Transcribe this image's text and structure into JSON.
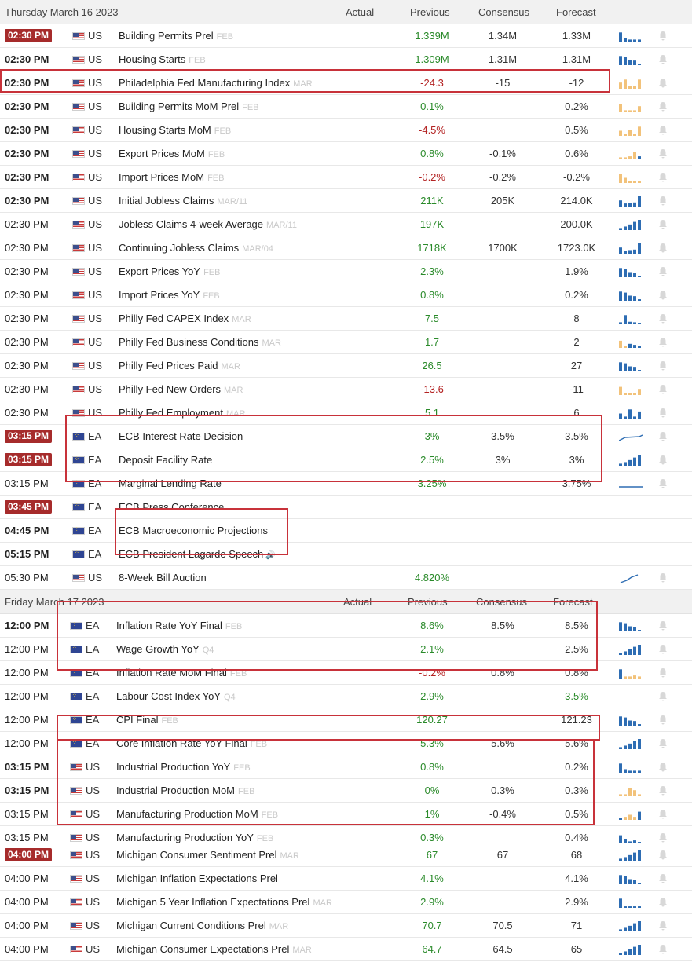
{
  "sections": [
    {
      "date": "Thursday March 16 2023",
      "columns": {
        "actual": "Actual",
        "previous": "Previous",
        "consensus": "Consensus",
        "forecast": "Forecast"
      },
      "rows": [
        {
          "time": "02:30 PM",
          "style": "badge",
          "country": "US",
          "event": "Building Permits Prel",
          "period": "FEB",
          "previous": "1.339M",
          "prev_color": "green",
          "consensus": "1.34M",
          "forecast": "1.33M",
          "spark": "bars-blue-1"
        },
        {
          "time": "02:30 PM",
          "style": "bold",
          "country": "US",
          "event": "Housing Starts",
          "period": "FEB",
          "previous": "1.309M",
          "prev_color": "green",
          "consensus": "1.31M",
          "forecast": "1.31M",
          "spark": "bars-blue-2"
        },
        {
          "time": "02:30 PM",
          "style": "bold",
          "country": "US",
          "event": "Philadelphia Fed Manufacturing Index",
          "period": "MAR",
          "previous": "-24.3",
          "prev_color": "red",
          "consensus": "-15",
          "forecast": "-12",
          "spark": "bars-yellow-1"
        },
        {
          "time": "02:30 PM",
          "style": "bold",
          "country": "US",
          "event": "Building Permits MoM Prel",
          "period": "FEB",
          "previous": "0.1%",
          "prev_color": "green",
          "consensus": "",
          "forecast": "0.2%",
          "spark": "bars-yellow-2"
        },
        {
          "time": "02:30 PM",
          "style": "bold",
          "country": "US",
          "event": "Housing Starts MoM",
          "period": "FEB",
          "previous": "-4.5%",
          "prev_color": "red",
          "consensus": "",
          "forecast": "0.5%",
          "spark": "bars-yellow-3"
        },
        {
          "time": "02:30 PM",
          "style": "bold",
          "country": "US",
          "event": "Export Prices MoM",
          "period": "FEB",
          "previous": "0.8%",
          "prev_color": "green",
          "consensus": "-0.1%",
          "forecast": "0.6%",
          "spark": "bars-yellow-4"
        },
        {
          "time": "02:30 PM",
          "style": "bold",
          "country": "US",
          "event": "Import Prices MoM",
          "period": "FEB",
          "previous": "-0.2%",
          "prev_color": "red",
          "consensus": "-0.2%",
          "forecast": "-0.2%",
          "spark": "bars-yellow-5"
        },
        {
          "time": "02:30 PM",
          "style": "bold",
          "country": "US",
          "event": "Initial Jobless Claims",
          "period": "MAR/11",
          "previous": "211K",
          "prev_color": "green",
          "consensus": "205K",
          "forecast": "214.0K",
          "spark": "bars-blue-3"
        },
        {
          "time": "02:30 PM",
          "style": "normal",
          "country": "US",
          "event": "Jobless Claims 4-week Average",
          "period": "MAR/11",
          "previous": "197K",
          "prev_color": "green",
          "consensus": "",
          "forecast": "200.0K",
          "spark": "bars-blue-4"
        },
        {
          "time": "02:30 PM",
          "style": "normal",
          "country": "US",
          "event": "Continuing Jobless Claims",
          "period": "MAR/04",
          "previous": "1718K",
          "prev_color": "green",
          "consensus": "1700K",
          "forecast": "1723.0K",
          "spark": "bars-blue-3"
        },
        {
          "time": "02:30 PM",
          "style": "normal",
          "country": "US",
          "event": "Export Prices YoY",
          "period": "FEB",
          "previous": "2.3%",
          "prev_color": "green",
          "consensus": "",
          "forecast": "1.9%",
          "spark": "bars-blue-2"
        },
        {
          "time": "02:30 PM",
          "style": "normal",
          "country": "US",
          "event": "Import Prices YoY",
          "period": "FEB",
          "previous": "0.8%",
          "prev_color": "green",
          "consensus": "",
          "forecast": "0.2%",
          "spark": "bars-blue-2"
        },
        {
          "time": "02:30 PM",
          "style": "normal",
          "country": "US",
          "event": "Philly Fed CAPEX Index",
          "period": "MAR",
          "previous": "7.5",
          "prev_color": "green",
          "consensus": "",
          "forecast": "8",
          "spark": "bars-blue-5"
        },
        {
          "time": "02:30 PM",
          "style": "normal",
          "country": "US",
          "event": "Philly Fed Business Conditions",
          "period": "MAR",
          "previous": "1.7",
          "prev_color": "green",
          "consensus": "",
          "forecast": "2",
          "spark": "bars-mixed-1"
        },
        {
          "time": "02:30 PM",
          "style": "normal",
          "country": "US",
          "event": "Philly Fed Prices Paid",
          "period": "MAR",
          "previous": "26.5",
          "prev_color": "green",
          "consensus": "",
          "forecast": "27",
          "spark": "bars-blue-2"
        },
        {
          "time": "02:30 PM",
          "style": "normal",
          "country": "US",
          "event": "Philly Fed New Orders",
          "period": "MAR",
          "previous": "-13.6",
          "prev_color": "red",
          "consensus": "",
          "forecast": "-11",
          "spark": "bars-yellow-2"
        },
        {
          "time": "02:30 PM",
          "style": "normal",
          "country": "US",
          "event": "Philly Fed Employment",
          "period": "MAR",
          "previous": "5.1",
          "prev_color": "green",
          "consensus": "",
          "forecast": "6",
          "spark": "bars-blue-6"
        },
        {
          "time": "03:15 PM",
          "style": "badge",
          "country": "EA",
          "event": "ECB Interest Rate Decision",
          "period": "",
          "previous": "3%",
          "prev_color": "green",
          "consensus": "3.5%",
          "forecast": "3.5%",
          "spark": "line-step"
        },
        {
          "time": "03:15 PM",
          "style": "badge",
          "country": "EA",
          "event": "Deposit Facility Rate",
          "period": "",
          "previous": "2.5%",
          "prev_color": "green",
          "consensus": "3%",
          "forecast": "3%",
          "spark": "bars-blue-4"
        },
        {
          "time": "03:15 PM",
          "style": "normal",
          "country": "EA",
          "event": "Marginal Lending Rate",
          "period": "",
          "previous": "3.25%",
          "prev_color": "green",
          "consensus": "",
          "forecast": "3.75%",
          "spark": "line-flat"
        },
        {
          "time": "03:45 PM",
          "style": "badge",
          "country": "EA",
          "event": "ECB Press Conference",
          "period": "",
          "previous": "",
          "prev_color": "green",
          "consensus": "",
          "forecast": "",
          "spark": "none",
          "nobell": true
        },
        {
          "time": "04:45 PM",
          "style": "bold",
          "country": "EA",
          "event": "ECB Macroeconomic Projections",
          "period": "",
          "previous": "",
          "prev_color": "green",
          "consensus": "",
          "forecast": "",
          "spark": "none",
          "nobell": true
        },
        {
          "time": "05:15 PM",
          "style": "bold",
          "country": "EA",
          "event": "ECB President Lagarde Speech",
          "period": "",
          "speaker": true,
          "previous": "",
          "prev_color": "green",
          "consensus": "",
          "forecast": "",
          "spark": "none",
          "nobell": true
        },
        {
          "time": "05:30 PM",
          "style": "normal",
          "country": "US",
          "event": "8-Week Bill Auction",
          "period": "",
          "previous": "4.820%",
          "prev_color": "green",
          "consensus": "",
          "forecast": "",
          "spark": "line-rise"
        }
      ]
    },
    {
      "date": "Friday March 17 2023",
      "columns": {
        "actual": "Actual",
        "previous": "Previous",
        "consensus": "Consensus",
        "forecast": "Forecast"
      },
      "rows": [
        {
          "time": "12:00 PM",
          "style": "bold",
          "country": "EA",
          "event": "Inflation Rate YoY Final",
          "period": "FEB",
          "previous": "8.6%",
          "prev_color": "green",
          "consensus": "8.5%",
          "forecast": "8.5%",
          "spark": "bars-blue-2"
        },
        {
          "time": "12:00 PM",
          "style": "normal",
          "country": "EA",
          "event": "Wage Growth YoY",
          "period": "Q4",
          "previous": "2.1%",
          "prev_color": "green",
          "consensus": "",
          "forecast": "2.5%",
          "spark": "bars-blue-4"
        },
        {
          "time": "12:00 PM",
          "style": "normal",
          "country": "EA",
          "event": "Inflation Rate MoM Final",
          "period": "FEB",
          "previous": "-0.2%",
          "prev_color": "red",
          "consensus": "0.8%",
          "forecast": "0.8%",
          "spark": "bars-mixed-2"
        },
        {
          "time": "12:00 PM",
          "style": "normal",
          "country": "EA",
          "event": "Labour Cost Index YoY",
          "period": "Q4",
          "previous": "2.9%",
          "prev_color": "green",
          "consensus": "",
          "forecast": "3.5%",
          "fore_color": "green",
          "spark": "none"
        },
        {
          "time": "12:00 PM",
          "style": "normal",
          "country": "EA",
          "event": "CPI Final",
          "period": "FEB",
          "previous": "120.27",
          "prev_color": "green",
          "consensus": "",
          "forecast": "121.23",
          "spark": "bars-blue-2"
        },
        {
          "time": "12:00 PM",
          "style": "normal",
          "country": "EA",
          "event": "Core Inflation Rate YoY Final",
          "period": "FEB",
          "previous": "5.3%",
          "prev_color": "green",
          "consensus": "5.6%",
          "forecast": "5.6%",
          "spark": "bars-blue-4"
        },
        {
          "time": "03:15 PM",
          "style": "bold",
          "country": "US",
          "event": "Industrial Production YoY",
          "period": "FEB",
          "previous": "0.8%",
          "prev_color": "green",
          "consensus": "",
          "forecast": "0.2%",
          "spark": "bars-blue-1"
        },
        {
          "time": "03:15 PM",
          "style": "bold",
          "country": "US",
          "event": "Industrial Production MoM",
          "period": "FEB",
          "previous": "0%",
          "prev_color": "green",
          "consensus": "0.3%",
          "forecast": "0.3%",
          "spark": "bars-yellow-6"
        },
        {
          "time": "03:15 PM",
          "style": "normal",
          "country": "US",
          "event": "Manufacturing Production MoM",
          "period": "FEB",
          "previous": "1%",
          "prev_color": "green",
          "consensus": "-0.4%",
          "forecast": "0.5%",
          "spark": "bars-mixed-3"
        },
        {
          "time": "03:15 PM",
          "style": "normal",
          "country": "US",
          "event": "Manufacturing Production YoY",
          "period": "FEB",
          "previous": "0.3%",
          "prev_color": "green",
          "consensus": "",
          "forecast": "0.4%",
          "spark": "bars-blue-7"
        },
        {
          "time": "04:00 PM",
          "style": "badge",
          "country": "US",
          "event": "Michigan Consumer Sentiment Prel",
          "period": "MAR",
          "previous": "67",
          "prev_color": "green",
          "consensus": "67",
          "forecast": "68",
          "spark": "bars-blue-4"
        },
        {
          "time": "04:00 PM",
          "style": "normal",
          "country": "US",
          "event": "Michigan Inflation Expectations Prel",
          "period": "",
          "previous": "4.1%",
          "prev_color": "green",
          "consensus": "",
          "forecast": "4.1%",
          "spark": "bars-blue-2"
        },
        {
          "time": "04:00 PM",
          "style": "normal",
          "country": "US",
          "event": "Michigan 5 Year Inflation Expectations Prel",
          "period": "MAR",
          "previous": "2.9%",
          "prev_color": "green",
          "consensus": "",
          "forecast": "2.9%",
          "spark": "bars-blue-8"
        },
        {
          "time": "04:00 PM",
          "style": "normal",
          "country": "US",
          "event": "Michigan Current Conditions Prel",
          "period": "MAR",
          "previous": "70.7",
          "prev_color": "green",
          "consensus": "70.5",
          "forecast": "71",
          "spark": "bars-blue-4"
        },
        {
          "time": "04:00 PM",
          "style": "normal",
          "country": "US",
          "event": "Michigan Consumer Expectations Prel",
          "period": "MAR",
          "previous": "64.7",
          "prev_color": "green",
          "consensus": "64.5",
          "forecast": "65",
          "spark": "bars-blue-4"
        }
      ]
    }
  ],
  "colors": {
    "accent": "#a62b2b",
    "green": "#2a8a2a",
    "red": "#b32222",
    "highlight": "#c8323a",
    "spark_blue": "#2e6db3",
    "spark_yellow": "#f2c27a"
  }
}
